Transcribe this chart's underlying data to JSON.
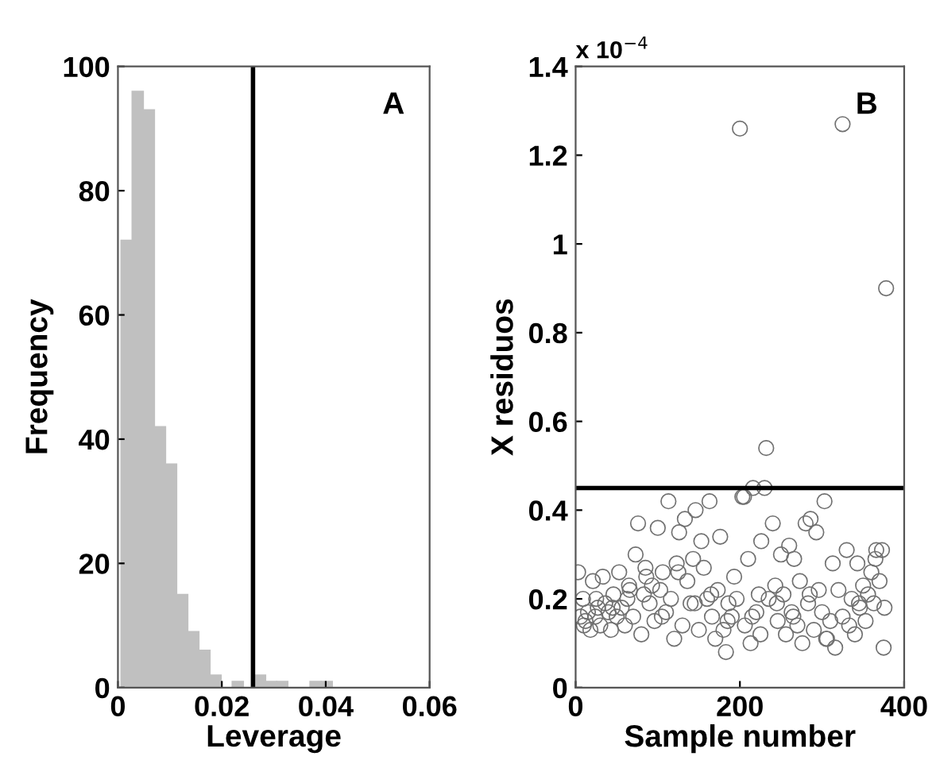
{
  "chart_data": [
    {
      "type": "histogram",
      "xlabel": "Leverage",
      "ylabel": "Frequency",
      "annotations": [
        "A"
      ],
      "bins": [
        0.0006,
        0.00274,
        0.00488,
        0.00702,
        0.00916,
        0.0113,
        0.01344,
        0.01558,
        0.01772,
        0.01986,
        0.022,
        0.02414,
        0.02628,
        0.02842,
        0.03056,
        0.0327,
        0.03484,
        0.03698,
        0.03912,
        0.04126
      ],
      "values": [
        72,
        96,
        93,
        42,
        36,
        15,
        9,
        6,
        2,
        0,
        1,
        0,
        2,
        1,
        1,
        0,
        0,
        1,
        1
      ],
      "color": "#c0c0c0",
      "xlim": [
        0,
        0.06
      ],
      "xticks": [
        0,
        0.02,
        0.04,
        0.06
      ],
      "ylim": [
        0,
        100
      ],
      "yticks": [
        0,
        20,
        40,
        60,
        80,
        100
      ],
      "ref_lines": [
        {
          "axis": "x",
          "value": 0.026,
          "color": "#000000"
        }
      ],
      "grid": false
    },
    {
      "type": "scatter",
      "xlabel": "Sample number",
      "ylabel": "X residuos",
      "annotations": [
        "B",
        "x 10$^{−4}$"
      ],
      "x": [
        3,
        6,
        9,
        12,
        15,
        18,
        21,
        24,
        27,
        30,
        33,
        36,
        40,
        43,
        46,
        50,
        53,
        56,
        60,
        63,
        66,
        70,
        73,
        76,
        80,
        83,
        86,
        90,
        93,
        96,
        100,
        103,
        106,
        110,
        113,
        116,
        120,
        123,
        126,
        130,
        133,
        136,
        140,
        143,
        146,
        150,
        153,
        156,
        160,
        163,
        166,
        170,
        173,
        176,
        180,
        183,
        186,
        190,
        193,
        196,
        200,
        203,
        206,
        210,
        213,
        216,
        220,
        223,
        226,
        230,
        232,
        235,
        240,
        243,
        246,
        250,
        253,
        256,
        260,
        263,
        266,
        270,
        273,
        276,
        280,
        283,
        286,
        290,
        293,
        296,
        300,
        303,
        306,
        310,
        313,
        316,
        320,
        325,
        330,
        333,
        336,
        340,
        343,
        346,
        350,
        353,
        356,
        360,
        363,
        366,
        370,
        373,
        376,
        378,
        10,
        25,
        45,
        65,
        85,
        105,
        125,
        145,
        165,
        185,
        205,
        215,
        225,
        245,
        265,
        285,
        305,
        325,
        345,
        365,
        375
      ],
      "series": [
        {
          "color": "#707070",
          "values": [
            0.26,
            0.16,
            0.2,
            0.15,
            0.17,
            0.13,
            0.24,
            0.16,
            0.18,
            0.14,
            0.25,
            0.19,
            0.17,
            0.13,
            0.21,
            0.16,
            0.26,
            0.18,
            0.14,
            0.2,
            0.22,
            0.16,
            0.3,
            0.37,
            0.12,
            0.21,
            0.25,
            0.19,
            0.23,
            0.15,
            0.36,
            0.22,
            0.26,
            0.17,
            0.42,
            0.2,
            0.11,
            0.28,
            0.35,
            0.14,
            0.38,
            0.24,
            0.19,
            0.29,
            0.4,
            0.13,
            0.33,
            0.27,
            0.2,
            0.42,
            0.16,
            0.11,
            0.22,
            0.34,
            0.13,
            0.08,
            0.19,
            0.16,
            0.25,
            0.2,
            1.26,
            0.43,
            0.14,
            0.29,
            0.1,
            0.45,
            0.17,
            0.21,
            0.33,
            0.45,
            0.54,
            0.2,
            0.37,
            0.23,
            0.15,
            0.3,
            0.21,
            0.12,
            0.32,
            0.17,
            0.29,
            0.14,
            0.24,
            0.1,
            0.37,
            0.19,
            0.38,
            0.13,
            0.35,
            0.22,
            0.17,
            0.42,
            0.11,
            0.15,
            0.28,
            0.09,
            0.22,
            1.27,
            0.31,
            0.14,
            0.2,
            0.12,
            0.28,
            0.18,
            0.23,
            0.15,
            0.21,
            0.26,
            0.19,
            0.31,
            0.24,
            0.31,
            0.18,
            0.9,
            0.14,
            0.2,
            0.18,
            0.23,
            0.27,
            0.16,
            0.26,
            0.19,
            0.21,
            0.15,
            0.43,
            0.16,
            0.12,
            0.19,
            0.16,
            0.21,
            0.11,
            0.16,
            0.19,
            0.29,
            0.09
          ]
        }
      ],
      "marker": "circle",
      "xlim": [
        0,
        400
      ],
      "xticks": [
        0,
        200,
        400
      ],
      "ylim": [
        0,
        1.4
      ],
      "yticks": [
        0,
        0.2,
        0.4,
        0.6,
        0.8,
        1,
        1.2,
        1.4
      ],
      "ref_lines": [
        {
          "axis": "y",
          "value": 0.45,
          "color": "#000000"
        }
      ],
      "grid": false
    }
  ]
}
